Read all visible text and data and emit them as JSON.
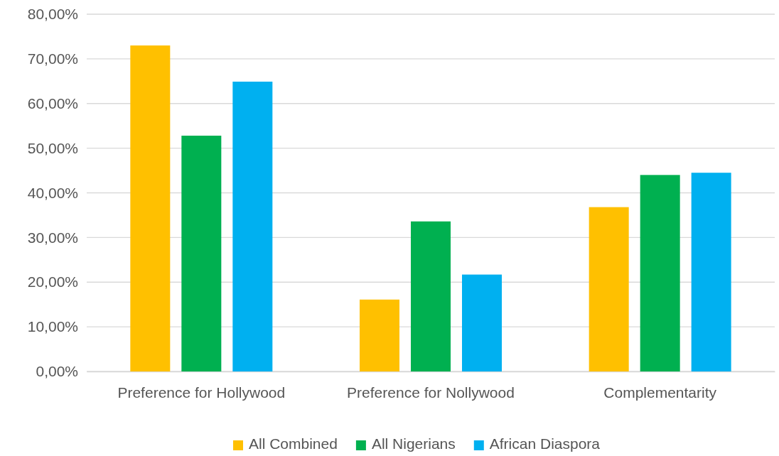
{
  "chart_data": {
    "type": "bar",
    "categories": [
      "Preference for Hollywood",
      "Preference for Nollywood",
      "Complementarity"
    ],
    "series": [
      {
        "name": "All Combined",
        "color": "#ffc000",
        "values": [
          73.0,
          16.1,
          36.8
        ]
      },
      {
        "name": "All Nigerians",
        "color": "#00b050",
        "values": [
          52.8,
          33.6,
          44.0
        ]
      },
      {
        "name": "African Diaspora",
        "color": "#00b0f0",
        "values": [
          64.9,
          21.7,
          44.5
        ]
      }
    ],
    "ylim": [
      0,
      80
    ],
    "yticks": [
      {
        "value": 0,
        "label": "0,00%"
      },
      {
        "value": 10,
        "label": "10,00%"
      },
      {
        "value": 20,
        "label": "20,00%"
      },
      {
        "value": 30,
        "label": "30,00%"
      },
      {
        "value": 40,
        "label": "40,00%"
      },
      {
        "value": 50,
        "label": "50,00%"
      },
      {
        "value": 60,
        "label": "60,00%"
      },
      {
        "value": 70,
        "label": "70,00%"
      },
      {
        "value": 80,
        "label": "80,00%"
      }
    ],
    "grid": "y",
    "legend": "bottom"
  }
}
